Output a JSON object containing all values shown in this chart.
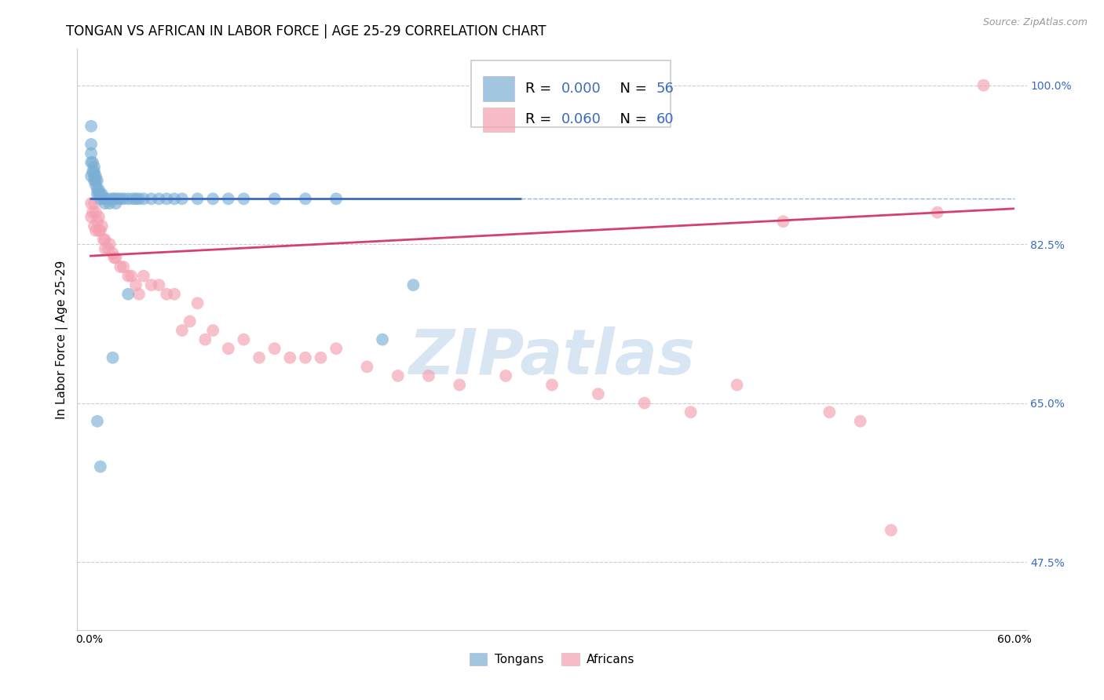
{
  "title": "TONGAN VS AFRICAN IN LABOR FORCE | AGE 25-29 CORRELATION CHART",
  "source": "Source: ZipAtlas.com",
  "ylabel": "In Labor Force | Age 25-29",
  "xlim": [
    0.0,
    0.6
  ],
  "ylim": [
    0.4,
    1.04
  ],
  "ytick_positions": [
    0.475,
    0.65,
    0.825,
    1.0
  ],
  "ytick_labels": [
    "47.5%",
    "65.0%",
    "82.5%",
    "100.0%"
  ],
  "xtick_positions": [
    0.0,
    0.6
  ],
  "xtick_labels": [
    "0.0%",
    "60.0%"
  ],
  "grid_color": "#cccccc",
  "background_color": "#ffffff",
  "blue_color": "#7bafd4",
  "pink_color": "#f4a0b0",
  "trendline_blue": "#3a6bbf",
  "trendline_pink": "#d44070",
  "R_blue": 0.0,
  "N_blue": 56,
  "R_pink": 0.06,
  "N_pink": 60,
  "blue_x": [
    0.001,
    0.001,
    0.001,
    0.001,
    0.001,
    0.002,
    0.002,
    0.003,
    0.003,
    0.003,
    0.003,
    0.004,
    0.004,
    0.004,
    0.005,
    0.005,
    0.005,
    0.006,
    0.006,
    0.007,
    0.007,
    0.008,
    0.009,
    0.01,
    0.01,
    0.012,
    0.013,
    0.015,
    0.016,
    0.017,
    0.018,
    0.02,
    0.022,
    0.025,
    0.028,
    0.03,
    0.032,
    0.035,
    0.04,
    0.045,
    0.05,
    0.055,
    0.06,
    0.07,
    0.08,
    0.09,
    0.1,
    0.12,
    0.14,
    0.16,
    0.19,
    0.21,
    0.005,
    0.007,
    0.015,
    0.025
  ],
  "blue_y": [
    0.955,
    0.935,
    0.925,
    0.915,
    0.9,
    0.915,
    0.905,
    0.91,
    0.905,
    0.9,
    0.895,
    0.9,
    0.895,
    0.89,
    0.895,
    0.885,
    0.88,
    0.885,
    0.88,
    0.88,
    0.875,
    0.88,
    0.875,
    0.875,
    0.87,
    0.875,
    0.87,
    0.875,
    0.875,
    0.87,
    0.875,
    0.875,
    0.875,
    0.875,
    0.875,
    0.875,
    0.875,
    0.875,
    0.875,
    0.875,
    0.875,
    0.875,
    0.875,
    0.875,
    0.875,
    0.875,
    0.875,
    0.875,
    0.875,
    0.875,
    0.72,
    0.78,
    0.63,
    0.58,
    0.7,
    0.77
  ],
  "pink_x": [
    0.001,
    0.001,
    0.002,
    0.003,
    0.003,
    0.004,
    0.004,
    0.005,
    0.006,
    0.006,
    0.007,
    0.008,
    0.009,
    0.01,
    0.01,
    0.012,
    0.013,
    0.015,
    0.016,
    0.017,
    0.02,
    0.022,
    0.025,
    0.027,
    0.03,
    0.032,
    0.035,
    0.04,
    0.045,
    0.05,
    0.055,
    0.06,
    0.065,
    0.07,
    0.075,
    0.08,
    0.09,
    0.1,
    0.11,
    0.12,
    0.13,
    0.14,
    0.15,
    0.16,
    0.18,
    0.2,
    0.22,
    0.24,
    0.27,
    0.3,
    0.33,
    0.36,
    0.39,
    0.42,
    0.45,
    0.48,
    0.5,
    0.52,
    0.55,
    0.58
  ],
  "pink_y": [
    0.87,
    0.855,
    0.86,
    0.87,
    0.845,
    0.86,
    0.84,
    0.85,
    0.855,
    0.84,
    0.84,
    0.845,
    0.83,
    0.83,
    0.82,
    0.82,
    0.825,
    0.815,
    0.81,
    0.81,
    0.8,
    0.8,
    0.79,
    0.79,
    0.78,
    0.77,
    0.79,
    0.78,
    0.78,
    0.77,
    0.77,
    0.73,
    0.74,
    0.76,
    0.72,
    0.73,
    0.71,
    0.72,
    0.7,
    0.71,
    0.7,
    0.7,
    0.7,
    0.71,
    0.69,
    0.68,
    0.68,
    0.67,
    0.68,
    0.67,
    0.66,
    0.65,
    0.64,
    0.67,
    0.85,
    0.64,
    0.63,
    0.51,
    0.86,
    1.0
  ],
  "blue_trend_y_at_0": 0.875,
  "blue_trend_x_end": 0.28,
  "pink_trend_y_at_0": 0.812,
  "pink_trend_slope": 0.087,
  "watermark_text": "ZIPatlas",
  "legend_R_color": "#3a6bbf",
  "legend_N_color": "#3a6bbf"
}
